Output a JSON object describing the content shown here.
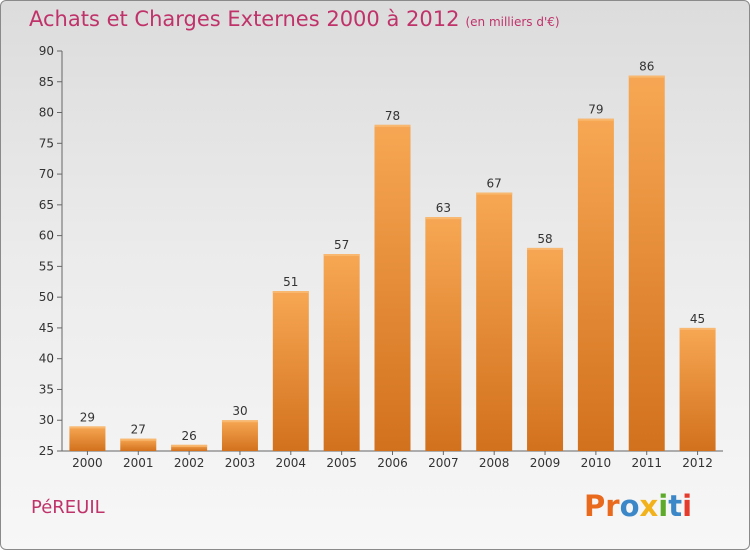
{
  "header": {
    "title": "Achats et Charges Externes 2000 à 2012",
    "unit": "(en milliers d'€)"
  },
  "commune": "PéREUIL",
  "brand": {
    "letters": [
      "P",
      "r",
      "o",
      "x",
      "i",
      "t",
      "i"
    ],
    "colors": [
      "#e96a1c",
      "#e96a1c",
      "#3b87c8",
      "#f2b21b",
      "#5daa2b",
      "#3b87c8",
      "#e53b2c"
    ]
  },
  "colors": {
    "bar_light": "#f5a550",
    "bar_dark": "#d6731e",
    "title": "#c0336a"
  },
  "chart_data": {
    "type": "bar",
    "title": "Achats et Charges Externes 2000 à 2012",
    "xlabel": "",
    "ylabel": "",
    "categories": [
      "2000",
      "2001",
      "2002",
      "2003",
      "2004",
      "2005",
      "2006",
      "2007",
      "2008",
      "2009",
      "2010",
      "2011",
      "2012"
    ],
    "values": [
      29,
      27,
      26,
      30,
      51,
      57,
      78,
      63,
      67,
      58,
      79,
      86,
      45
    ],
    "ylim": [
      25,
      90
    ],
    "yticks": [
      25,
      30,
      35,
      40,
      45,
      50,
      55,
      60,
      65,
      70,
      75,
      80,
      85,
      90
    ],
    "grid": false
  }
}
